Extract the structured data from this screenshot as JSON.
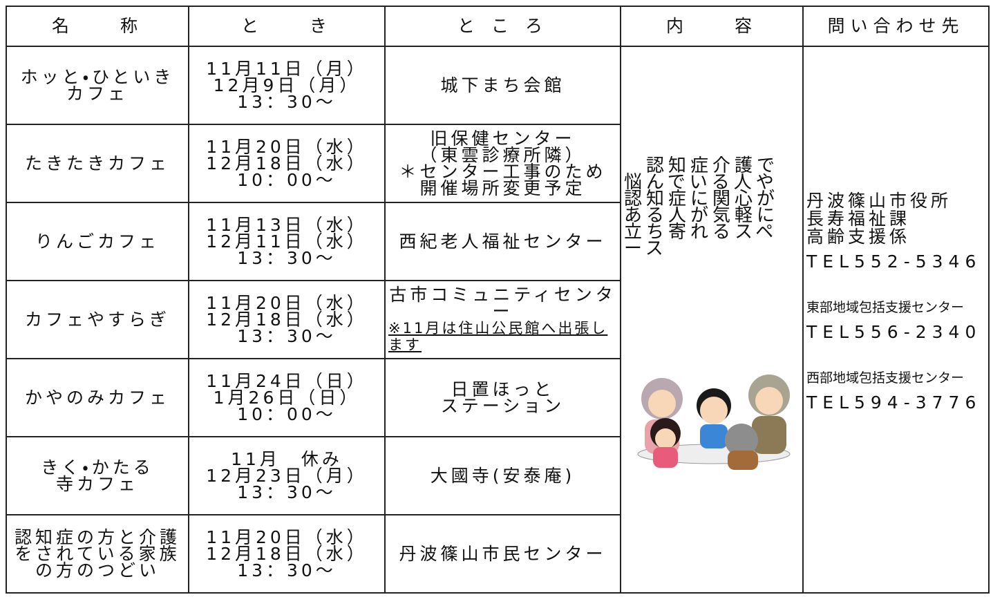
{
  "table": {
    "header": [
      "名　　称",
      "と　　き",
      "と こ ろ",
      "内　　容",
      "問い合わせ先"
    ],
    "rows": [
      {
        "name": [
          "ホッと・ひといき",
          "カフェ"
        ],
        "dates": [
          "11月11日（月）",
          "12月9日（月）",
          "13：30～"
        ],
        "place": [
          "城下まち会館"
        ]
      },
      {
        "name": [
          "たきたきカフェ"
        ],
        "dates": [
          "11月20日（水）",
          "12月18日（水）",
          "10：00～"
        ],
        "place": [
          "旧保健センター",
          "（東雲診療所隣）",
          "＊センター工事のため",
          "開催場所変更予定"
        ]
      },
      {
        "name": [
          "りんごカフェ"
        ],
        "dates": [
          "11月13日（水）",
          "12月11日（水）",
          "13：30～"
        ],
        "place": [
          "西紀老人福祉センター"
        ]
      },
      {
        "name": [
          "カフェやすらぎ"
        ],
        "dates": [
          "11月20日（水）",
          "12月18日（水）",
          "13：30～"
        ],
        "place": [
          "古市コミュニティセンター"
        ],
        "note": "※11月は住山公民館へ出張します"
      },
      {
        "name": [
          "かやのみカフェ"
        ],
        "dates": [
          "11月24日（日）",
          "1月26日（日）",
          "10：00～"
        ],
        "place": [
          "日置ほっと",
          "ステーション"
        ]
      },
      {
        "name": [
          "きく・かたる",
          "寺カフェ"
        ],
        "dates": [
          "11月　休み",
          "12月23日（月）",
          "13：30～"
        ],
        "place": [
          "大國寺(安泰庵)"
        ]
      },
      {
        "name": [
          "認知症の方と介護をされている家族の方のつどい"
        ],
        "dates": [
          "11月20日（水）",
          "12月18日（水）",
          "13：30～"
        ],
        "place": [
          "丹波篠山市民センター"
        ]
      }
    ],
    "content": [
      "　認知症介護で",
      "悩んでいる人や",
      "認知症に関心が",
      "ある人が気軽に",
      "立ち寄れるスペ",
      "ース"
    ],
    "contact": [
      "丹波篠山市役所",
      "長寿福祉課",
      "高齢支援係",
      "TEL552-5346",
      "東部地域包括支援センター",
      "TEL556-2340",
      "西部地域包括支援センター",
      "TEL594-3776"
    ]
  }
}
